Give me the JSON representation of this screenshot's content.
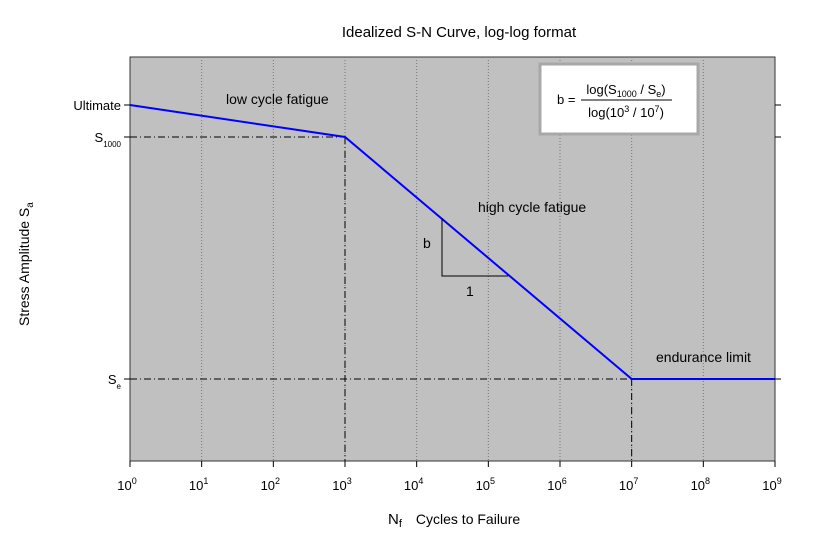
{
  "chart_data": {
    "type": "line",
    "title": "Idealized S-N Curve, log-log format",
    "xlabel": {
      "symbol": "N",
      "symbol_sub": "f",
      "text": "Cycles to Failure"
    },
    "ylabel": {
      "text": "Stress Amplitude  S",
      "sub": "a"
    },
    "x_scale": "log",
    "xlim": [
      1,
      1000000000
    ],
    "x_ticks": [
      {
        "value": 1,
        "base": "10",
        "exp": "0"
      },
      {
        "value": 10,
        "base": "10",
        "exp": "1"
      },
      {
        "value": 100,
        "base": "10",
        "exp": "2"
      },
      {
        "value": 1000,
        "base": "10",
        "exp": "3"
      },
      {
        "value": 10000,
        "base": "10",
        "exp": "4"
      },
      {
        "value": 100000,
        "base": "10",
        "exp": "5"
      },
      {
        "value": 1000000,
        "base": "10",
        "exp": "6"
      },
      {
        "value": 10000000,
        "base": "10",
        "exp": "7"
      },
      {
        "value": 100000000,
        "base": "10",
        "exp": "8"
      },
      {
        "value": 1000000000,
        "base": "10",
        "exp": "9"
      }
    ],
    "y_ticks": [
      {
        "key": "ultimate",
        "main": "Ultimate",
        "sub": ""
      },
      {
        "key": "s1000",
        "main": "S",
        "sub": "1000"
      },
      {
        "key": "se",
        "main": "S",
        "sub": "e"
      }
    ],
    "grid": {
      "x": true,
      "y": false
    },
    "series": [
      {
        "color": "#0000ff",
        "points": [
          {
            "x": 1,
            "y": "ultimate"
          },
          {
            "x": 1000,
            "y": "s1000"
          },
          {
            "x": 10000000,
            "y": "se"
          },
          {
            "x": 1000000000,
            "y": "se"
          }
        ]
      }
    ],
    "annotations": {
      "low_cycle": "low cycle fatigue",
      "high_cycle": "high cycle fatigue",
      "endurance": "endurance limit",
      "slope_rise": "b",
      "slope_run": "1"
    },
    "formula": {
      "lhs": "b =",
      "num_prefix": "log(S",
      "num_sub": "1000",
      "num_mid": " / S",
      "num_sub2": "e",
      "num_suffix": ")",
      "den_prefix": "log(10",
      "den_exp": "3",
      "den_mid": " / 10",
      "den_exp2": "7",
      "den_suffix": ")"
    },
    "colors": {
      "plot_bg": "#c0c0c0",
      "line": "#0000ff",
      "axis": "#000000"
    }
  }
}
